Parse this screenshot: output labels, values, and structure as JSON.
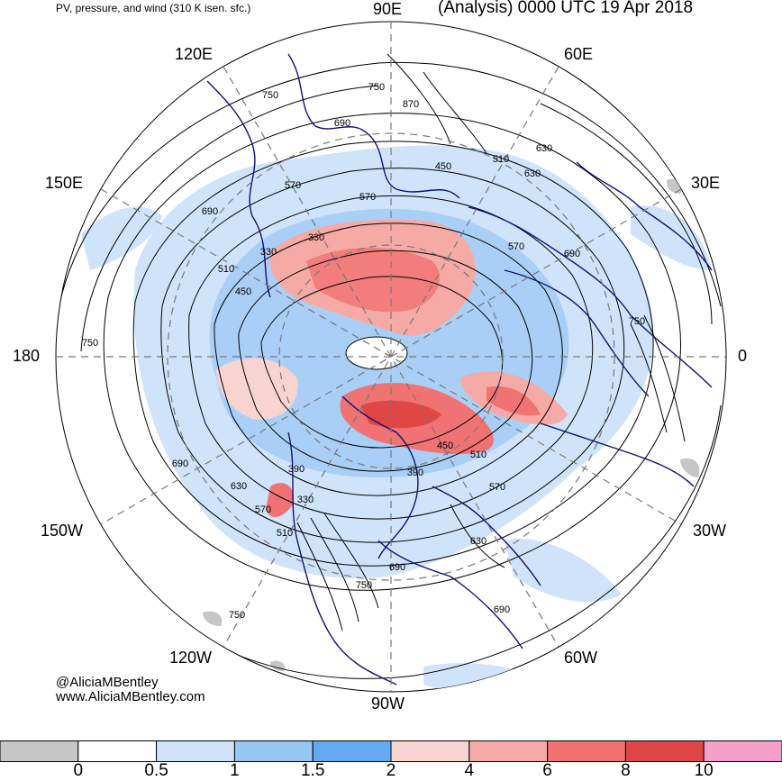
{
  "header": {
    "subtitle": "PV, pressure, and wind (310 K isen. sfc.)",
    "title": "(Analysis) 0000 UTC 19 Apr 2018"
  },
  "longitude_labels": {
    "lon_90e": "90E",
    "lon_60e": "60E",
    "lon_120e": "120E",
    "lon_150e": "150E",
    "lon_30e": "30E",
    "lon_180": "180",
    "lon_0": "0",
    "lon_150w": "150W",
    "lon_30w": "30W",
    "lon_120w": "120W",
    "lon_60w": "60W",
    "lon_90w": "90W"
  },
  "contour_labels": [
    "750",
    "750",
    "870",
    "690",
    "630",
    "510",
    "630",
    "570",
    "570",
    "450",
    "330",
    "690",
    "690",
    "570",
    "510",
    "450",
    "330",
    "750",
    "750",
    "450",
    "510",
    "690",
    "390",
    "390",
    "630",
    "570",
    "330",
    "510",
    "630",
    "690",
    "750",
    "750",
    "690",
    "570"
  ],
  "credits": {
    "handle": "@AliciaMBentley",
    "url": "www.AliciaMBentley.com"
  },
  "colorbar": {
    "tick_labels": [
      "0",
      "0.5",
      "1",
      "1.5",
      "2",
      "4",
      "6",
      "8",
      "10"
    ],
    "segments": [
      {
        "from": "<0",
        "to": "0",
        "color": "#c6c6c6"
      },
      {
        "from": "0",
        "to": "0.5",
        "color": "#ffffff"
      },
      {
        "from": "0.5",
        "to": "1",
        "color": "#cfe4fb"
      },
      {
        "from": "1",
        "to": "1.5",
        "color": "#98c6f5"
      },
      {
        "from": "1.5",
        "to": "2",
        "color": "#64a9f3"
      },
      {
        "from": "2",
        "to": "4",
        "color": "#f7d4d0"
      },
      {
        "from": "4",
        "to": "6",
        "color": "#f6aaa5"
      },
      {
        "from": "6",
        "to": "8",
        "color": "#f17272"
      },
      {
        "from": "8",
        "to": "10",
        "color": "#e04646"
      },
      {
        "from": "10",
        "to": ">10",
        "color": "#f5a0cc"
      }
    ]
  },
  "colors": {
    "coastline": "#10107a",
    "contour": "#000000",
    "grid": "#777777"
  }
}
